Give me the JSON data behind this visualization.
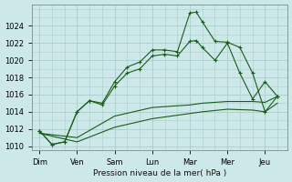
{
  "background_color": "#cce8e8",
  "grid_color": "#aacccc",
  "line_color": "#1a5c1a",
  "title": "Pression niveau de la mer( hPa )",
  "xlabels": [
    "Dim",
    "Ven",
    "Sam",
    "Lun",
    "Mar",
    "Mer",
    "Jeu"
  ],
  "ylim": [
    1009.5,
    1026.5
  ],
  "yticks": [
    1010,
    1012,
    1014,
    1016,
    1018,
    1020,
    1022,
    1024
  ],
  "series": [
    {
      "x": [
        0,
        0.33,
        0.67,
        1.0,
        1.33,
        1.67,
        2.0,
        2.33,
        2.67,
        3.0,
        3.33,
        3.67,
        4.0,
        4.17,
        4.33,
        4.67,
        5.0,
        5.33,
        5.67,
        6.0,
        6.33
      ],
      "y": [
        1011.8,
        1010.2,
        1010.5,
        1014.0,
        1015.3,
        1015.0,
        1017.5,
        1019.2,
        1019.8,
        1021.2,
        1021.2,
        1021.0,
        1025.5,
        1025.6,
        1024.5,
        1022.2,
        1022.1,
        1021.5,
        1018.5,
        1014.0,
        1015.8
      ],
      "marker": true
    },
    {
      "x": [
        0,
        0.33,
        0.67,
        1.0,
        1.33,
        1.67,
        2.0,
        2.33,
        2.67,
        3.0,
        3.33,
        3.67,
        4.0,
        4.17,
        4.33,
        4.67,
        5.0,
        5.33,
        5.67,
        6.0,
        6.33
      ],
      "y": [
        1011.8,
        1010.2,
        1010.5,
        1014.0,
        1015.3,
        1014.8,
        1017.0,
        1018.5,
        1019.0,
        1020.5,
        1020.7,
        1020.5,
        1022.2,
        1022.3,
        1021.5,
        1020.0,
        1022.0,
        1018.5,
        1015.5,
        1017.5,
        1015.8
      ],
      "marker": true
    },
    {
      "x": [
        0,
        1.0,
        2.0,
        3.0,
        4.0,
        4.33,
        5.0,
        5.67,
        6.0,
        6.33
      ],
      "y": [
        1011.5,
        1011.0,
        1013.5,
        1014.5,
        1014.8,
        1015.0,
        1015.2,
        1015.2,
        1015.1,
        1015.8
      ],
      "marker": false
    },
    {
      "x": [
        0,
        1.0,
        2.0,
        3.0,
        4.0,
        4.33,
        5.0,
        5.67,
        6.0,
        6.33
      ],
      "y": [
        1011.5,
        1010.5,
        1012.2,
        1013.2,
        1013.8,
        1014.0,
        1014.3,
        1014.2,
        1014.0,
        1015.0
      ],
      "marker": false
    }
  ],
  "xtick_positions": [
    0,
    1,
    2,
    3,
    4,
    5,
    6
  ],
  "xlim": [
    -0.2,
    6.6
  ],
  "figsize": [
    3.2,
    2.0
  ],
  "dpi": 100
}
